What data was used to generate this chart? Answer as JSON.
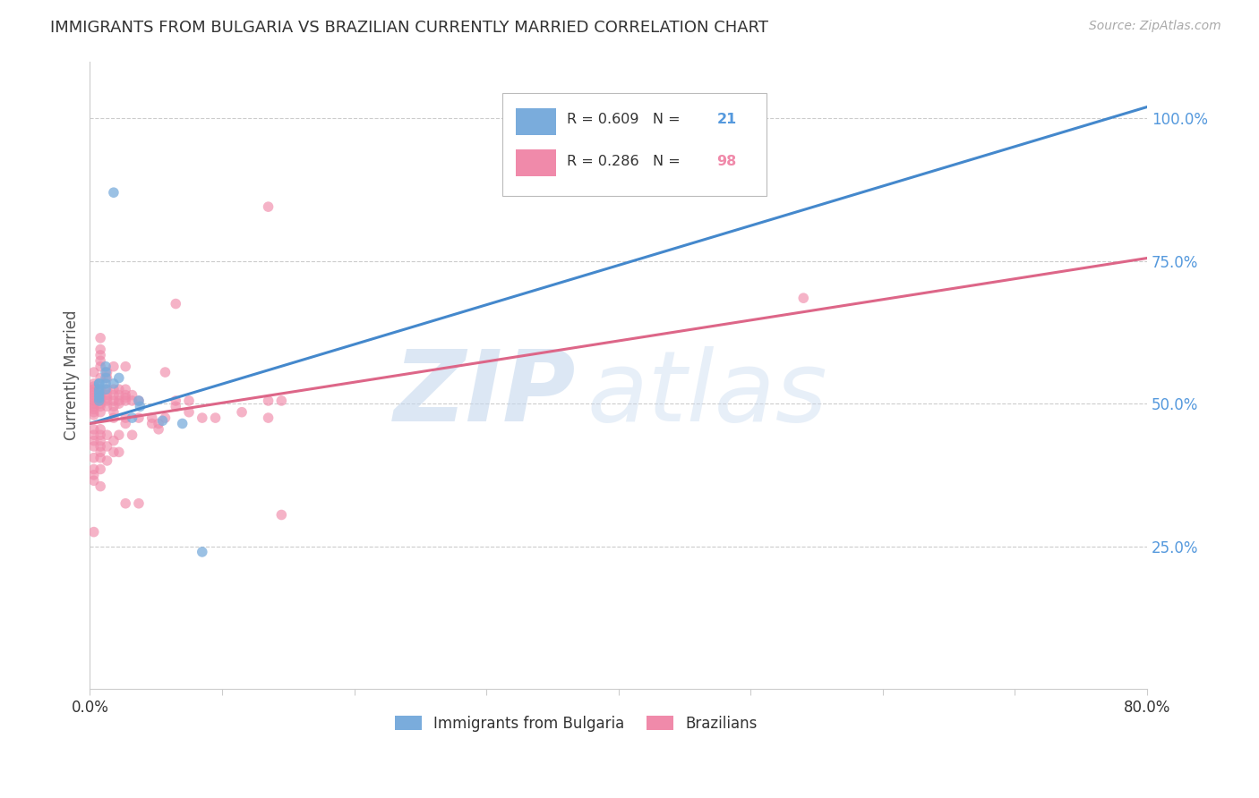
{
  "title": "IMMIGRANTS FROM BULGARIA VS BRAZILIAN CURRENTLY MARRIED CORRELATION CHART",
  "source": "Source: ZipAtlas.com",
  "ylabel": "Currently Married",
  "xlim": [
    0.0,
    0.8
  ],
  "ylim": [
    0.0,
    1.1
  ],
  "ytick_labels": [
    "25.0%",
    "50.0%",
    "75.0%",
    "100.0%"
  ],
  "ytick_positions": [
    0.25,
    0.5,
    0.75,
    1.0
  ],
  "bg_color": "#ffffff",
  "grid_color": "#cccccc",
  "blue_color": "#7aacdc",
  "pink_color": "#f08aaa",
  "blue_line_color": "#4488cc",
  "pink_line_color": "#dd6688",
  "blue_line_x": [
    0.0,
    0.8
  ],
  "blue_line_y": [
    0.465,
    1.02
  ],
  "pink_line_x": [
    0.0,
    0.8
  ],
  "pink_line_y": [
    0.465,
    0.755
  ],
  "ytick_color": "#5599dd",
  "blue_scatter": [
    [
      0.018,
      0.87
    ],
    [
      0.012,
      0.565
    ],
    [
      0.012,
      0.555
    ],
    [
      0.012,
      0.545
    ],
    [
      0.012,
      0.535
    ],
    [
      0.007,
      0.535
    ],
    [
      0.007,
      0.525
    ],
    [
      0.007,
      0.515
    ],
    [
      0.007,
      0.505
    ],
    [
      0.007,
      0.535
    ],
    [
      0.007,
      0.52
    ],
    [
      0.007,
      0.51
    ],
    [
      0.018,
      0.535
    ],
    [
      0.022,
      0.545
    ],
    [
      0.012,
      0.525
    ],
    [
      0.037,
      0.505
    ],
    [
      0.038,
      0.495
    ],
    [
      0.032,
      0.475
    ],
    [
      0.055,
      0.47
    ],
    [
      0.07,
      0.465
    ],
    [
      0.085,
      0.24
    ]
  ],
  "pink_scatter": [
    [
      0.003,
      0.505
    ],
    [
      0.003,
      0.495
    ],
    [
      0.003,
      0.515
    ],
    [
      0.003,
      0.51
    ],
    [
      0.003,
      0.5
    ],
    [
      0.003,
      0.52
    ],
    [
      0.003,
      0.49
    ],
    [
      0.003,
      0.525
    ],
    [
      0.003,
      0.485
    ],
    [
      0.003,
      0.48
    ],
    [
      0.003,
      0.53
    ],
    [
      0.003,
      0.455
    ],
    [
      0.003,
      0.445
    ],
    [
      0.003,
      0.435
    ],
    [
      0.003,
      0.535
    ],
    [
      0.003,
      0.555
    ],
    [
      0.003,
      0.425
    ],
    [
      0.003,
      0.405
    ],
    [
      0.003,
      0.385
    ],
    [
      0.003,
      0.375
    ],
    [
      0.003,
      0.365
    ],
    [
      0.008,
      0.505
    ],
    [
      0.008,
      0.495
    ],
    [
      0.008,
      0.515
    ],
    [
      0.008,
      0.51
    ],
    [
      0.008,
      0.5
    ],
    [
      0.008,
      0.525
    ],
    [
      0.008,
      0.485
    ],
    [
      0.008,
      0.545
    ],
    [
      0.008,
      0.565
    ],
    [
      0.008,
      0.575
    ],
    [
      0.008,
      0.585
    ],
    [
      0.008,
      0.595
    ],
    [
      0.008,
      0.615
    ],
    [
      0.008,
      0.455
    ],
    [
      0.008,
      0.445
    ],
    [
      0.008,
      0.435
    ],
    [
      0.008,
      0.425
    ],
    [
      0.008,
      0.415
    ],
    [
      0.008,
      0.405
    ],
    [
      0.008,
      0.385
    ],
    [
      0.008,
      0.355
    ],
    [
      0.013,
      0.505
    ],
    [
      0.013,
      0.495
    ],
    [
      0.013,
      0.545
    ],
    [
      0.013,
      0.555
    ],
    [
      0.013,
      0.525
    ],
    [
      0.013,
      0.515
    ],
    [
      0.013,
      0.51
    ],
    [
      0.013,
      0.445
    ],
    [
      0.013,
      0.425
    ],
    [
      0.013,
      0.4
    ],
    [
      0.018,
      0.505
    ],
    [
      0.018,
      0.495
    ],
    [
      0.018,
      0.525
    ],
    [
      0.018,
      0.515
    ],
    [
      0.018,
      0.485
    ],
    [
      0.018,
      0.475
    ],
    [
      0.018,
      0.565
    ],
    [
      0.018,
      0.435
    ],
    [
      0.018,
      0.415
    ],
    [
      0.022,
      0.505
    ],
    [
      0.022,
      0.515
    ],
    [
      0.022,
      0.5
    ],
    [
      0.022,
      0.525
    ],
    [
      0.022,
      0.445
    ],
    [
      0.022,
      0.415
    ],
    [
      0.027,
      0.525
    ],
    [
      0.027,
      0.515
    ],
    [
      0.027,
      0.51
    ],
    [
      0.027,
      0.505
    ],
    [
      0.027,
      0.475
    ],
    [
      0.027,
      0.465
    ],
    [
      0.027,
      0.565
    ],
    [
      0.027,
      0.325
    ],
    [
      0.032,
      0.505
    ],
    [
      0.032,
      0.515
    ],
    [
      0.032,
      0.445
    ],
    [
      0.037,
      0.505
    ],
    [
      0.037,
      0.475
    ],
    [
      0.037,
      0.325
    ],
    [
      0.047,
      0.465
    ],
    [
      0.047,
      0.475
    ],
    [
      0.052,
      0.455
    ],
    [
      0.052,
      0.465
    ],
    [
      0.057,
      0.555
    ],
    [
      0.057,
      0.475
    ],
    [
      0.065,
      0.505
    ],
    [
      0.065,
      0.495
    ],
    [
      0.075,
      0.505
    ],
    [
      0.075,
      0.485
    ],
    [
      0.085,
      0.475
    ],
    [
      0.095,
      0.475
    ],
    [
      0.115,
      0.485
    ],
    [
      0.135,
      0.505
    ],
    [
      0.145,
      0.505
    ],
    [
      0.135,
      0.475
    ],
    [
      0.003,
      0.275
    ],
    [
      0.135,
      0.845
    ],
    [
      0.54,
      0.685
    ],
    [
      0.145,
      0.305
    ],
    [
      0.065,
      0.675
    ]
  ],
  "legend_labels": [
    "Immigrants from Bulgaria",
    "Brazilians"
  ]
}
